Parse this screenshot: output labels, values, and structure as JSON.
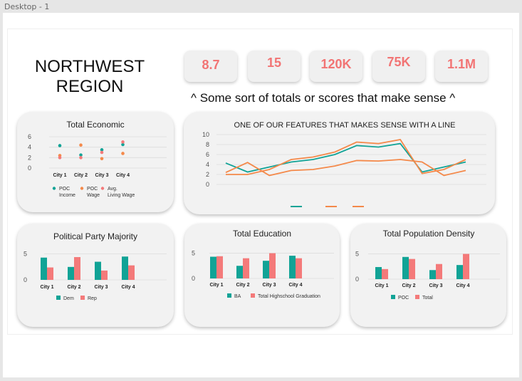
{
  "window": {
    "title": "Desktop - 1"
  },
  "header": {
    "title_line1": "NORTHWEST",
    "title_line2": "REGION"
  },
  "stats": [
    "8.7",
    "15",
    "120K",
    "75K",
    "1.1M"
  ],
  "stats_caption": "^  Some sort of totals or scores that make sense ^",
  "colors": {
    "teal": "#11a396",
    "orange": "#f4894a",
    "pink": "#f47a7a",
    "light_orange": "#f7a56b"
  },
  "chart_data": [
    {
      "id": "economic",
      "type": "scatter",
      "title": "Total Economic",
      "categories": [
        "City 1",
        "City 2",
        "City 3",
        "City 4"
      ],
      "yticks": [
        0,
        2,
        4,
        6
      ],
      "ylim": [
        0,
        6
      ],
      "series": [
        {
          "name": "POC Income",
          "values": [
            4.3,
            2.5,
            3.5,
            4.5
          ],
          "color": "#11a396"
        },
        {
          "name": "POC Wage",
          "values": [
            2.4,
            4.4,
            1.8,
            2.8
          ],
          "color": "#f4894a"
        },
        {
          "name": "Avg. Living Wage",
          "values": [
            2.0,
            2.0,
            3.0,
            5.0
          ],
          "color": "#f47a7a"
        }
      ],
      "legend_labels": [
        [
          "POC",
          "Income"
        ],
        [
          "POC",
          "Wage"
        ],
        [
          "Avg.",
          "Living Wage"
        ]
      ]
    },
    {
      "id": "feature_line",
      "type": "line",
      "title": "ONE OF OUR FEATURES THAT MAKES SENSE WITH A LINE",
      "yticks": [
        0,
        2,
        4,
        6,
        8,
        10
      ],
      "ylim": [
        0,
        10
      ],
      "x": [
        1,
        2,
        3,
        4,
        5,
        6,
        7,
        8,
        9,
        10,
        11,
        12
      ],
      "series": [
        {
          "name": "",
          "values": [
            4.3,
            2.5,
            3.5,
            4.5,
            5.0,
            6.0,
            7.8,
            7.5,
            8.2,
            2.5,
            3.5,
            4.5
          ],
          "color": "#11a396"
        },
        {
          "name": "",
          "values": [
            2.4,
            4.4,
            1.8,
            2.8,
            3.0,
            3.7,
            4.8,
            4.7,
            5.0,
            4.5,
            1.8,
            2.8
          ],
          "color": "#f4894a"
        },
        {
          "name": "",
          "values": [
            2.0,
            2.0,
            3.0,
            5.0,
            5.5,
            6.5,
            8.5,
            8.2,
            9.0,
            2.2,
            3.0,
            5.0
          ],
          "color": "#f4894a"
        }
      ]
    },
    {
      "id": "political",
      "type": "bar",
      "title": "Political Party Majority",
      "categories": [
        "City 1",
        "City 2",
        "City 3",
        "City 4"
      ],
      "yticks": [
        0,
        5
      ],
      "ylim": [
        0,
        5.5
      ],
      "series": [
        {
          "name": "Dem",
          "values": [
            4.3,
            2.5,
            3.5,
            4.5
          ],
          "color": "#11a396"
        },
        {
          "name": "Rep",
          "values": [
            2.4,
            4.4,
            1.8,
            2.8
          ],
          "color": "#f47a7a"
        }
      ]
    },
    {
      "id": "education",
      "type": "bar",
      "title": "Total Education",
      "categories": [
        "City 1",
        "City 2",
        "City 3",
        "City 4"
      ],
      "yticks": [
        0,
        5
      ],
      "ylim": [
        0,
        5.5
      ],
      "series": [
        {
          "name": "BA",
          "values": [
            4.3,
            2.5,
            3.5,
            4.5
          ],
          "color": "#11a396"
        },
        {
          "name": "Total Highschool Graduation",
          "values": [
            4.4,
            4.0,
            5.0,
            4.0
          ],
          "color": "#f47a7a"
        }
      ]
    },
    {
      "id": "population",
      "type": "bar",
      "title": "Total Population Density",
      "categories": [
        "City 1",
        "City 2",
        "City 3",
        "City 4"
      ],
      "yticks": [
        0,
        5
      ],
      "ylim": [
        0,
        5.5
      ],
      "series": [
        {
          "name": "POC",
          "values": [
            2.4,
            4.4,
            1.8,
            2.8
          ],
          "color": "#11a396"
        },
        {
          "name": "Total",
          "values": [
            2.0,
            4.0,
            3.0,
            5.0
          ],
          "color": "#f47a7a"
        }
      ]
    }
  ]
}
